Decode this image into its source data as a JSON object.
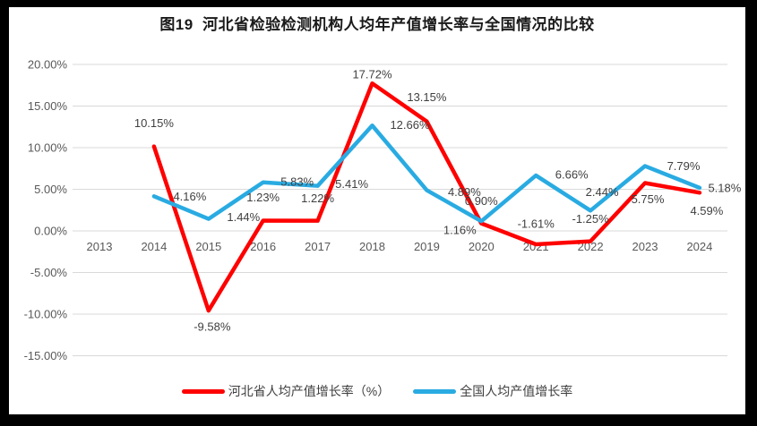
{
  "title": "图19  河北省检验检测机构人均年产值增长率与全国情况的比较",
  "colors": {
    "hebei_red": "#FF0000",
    "national_blue": "#29ABE2",
    "gridline": "#D9D9D9",
    "axis_text": "#595959",
    "label_text": "#404040",
    "frame": "#000000",
    "background": "#FFFFFF"
  },
  "chart_data": {
    "type": "line",
    "title": "图19  河北省检验检测机构人均年产值增长率与全国情况的比较",
    "x_categories": [
      "2013",
      "2014",
      "2015",
      "2016",
      "2017",
      "2018",
      "2019",
      "2020",
      "2021",
      "2022",
      "2023",
      "2024"
    ],
    "y_axis": {
      "min": -15,
      "max": 20,
      "tick_step": 5,
      "ticks": [
        {
          "label": "20.00%",
          "value": 20
        },
        {
          "label": "15.00%",
          "value": 15
        },
        {
          "label": "10.00%",
          "value": 10
        },
        {
          "label": "5.00%",
          "value": 5
        },
        {
          "label": "0.00%",
          "value": 0
        },
        {
          "label": "-5.00%",
          "value": -5
        },
        {
          "label": "-10.00%",
          "value": -10
        },
        {
          "label": "-15.00%",
          "value": -15
        }
      ]
    },
    "grid": true,
    "legend_position": "bottom",
    "series": [
      {
        "name": "河北省人均产值增长率（%）",
        "color": "#FF0000",
        "values": [
          null,
          10.15,
          -9.58,
          1.23,
          1.22,
          17.72,
          13.15,
          0.9,
          -1.61,
          -1.25,
          5.75,
          4.59
        ],
        "labels": [
          null,
          "10.15%",
          "-9.58%",
          "1.23%",
          "1.22%",
          "17.72%",
          "13.15%",
          "0.90%",
          "-1.61%",
          "-1.25%",
          "5.75%",
          "4.59%"
        ],
        "label_offsets": [
          null,
          [
            0,
            -26
          ],
          [
            4,
            18
          ],
          [
            0,
            -26
          ],
          [
            0,
            -25
          ],
          [
            0,
            -10
          ],
          [
            0,
            -27
          ],
          [
            0,
            -25
          ],
          [
            0,
            -23
          ],
          [
            0,
            -25
          ],
          [
            3,
            18
          ],
          [
            8,
            20
          ]
        ]
      },
      {
        "name": "全国人均产值增长率",
        "color": "#29ABE2",
        "values": [
          null,
          4.16,
          1.44,
          5.83,
          5.41,
          12.66,
          4.89,
          1.16,
          6.66,
          2.44,
          7.79,
          5.18
        ],
        "labels": [
          null,
          "4.16%",
          "1.44%",
          "5.83%",
          "5.41%",
          "12.66%",
          "4.89%",
          "1.16%",
          "6.66%",
          "2.44%",
          "7.79%",
          "5.18%"
        ],
        "label_offsets": [
          null,
          [
            40,
            0
          ],
          [
            39,
            -2
          ],
          [
            38,
            -1
          ],
          [
            38,
            -2
          ],
          [
            42,
            -1
          ],
          [
            42,
            2
          ],
          [
            -24,
            10
          ],
          [
            40,
            -1
          ],
          [
            13,
            -21
          ],
          [
            43,
            0
          ],
          [
            28,
            0
          ]
        ]
      }
    ]
  }
}
